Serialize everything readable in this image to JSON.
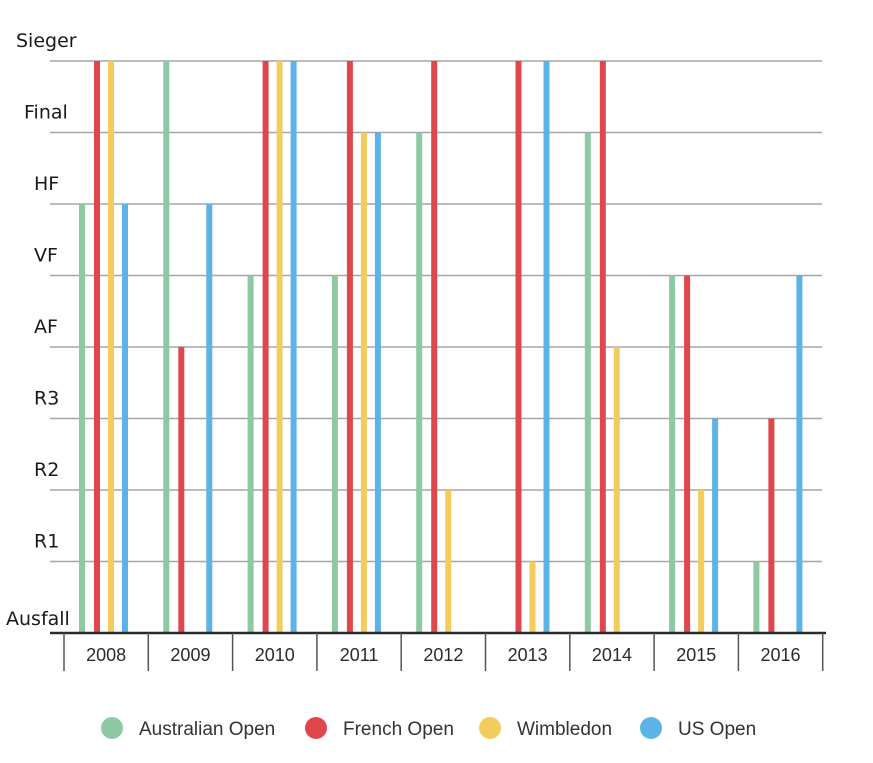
{
  "chart_data": {
    "type": "bar",
    "categories": [
      "2008",
      "2009",
      "2010",
      "2011",
      "2012",
      "2013",
      "2014",
      "2015",
      "2016"
    ],
    "y_levels": [
      "Ausfall",
      "R1",
      "R2",
      "R3",
      "AF",
      "VF",
      "HF",
      "Final",
      "Sieger"
    ],
    "ylim": [
      0,
      8
    ],
    "grid": true,
    "legend_position": "bottom",
    "series": [
      {
        "name": "Australian Open",
        "color": "#8ec9a4",
        "values": [
          "HF",
          "Sieger",
          "VF",
          "VF",
          "Final",
          "Ausfall",
          "Final",
          "VF",
          "R1"
        ]
      },
      {
        "name": "French Open",
        "color": "#e0474c",
        "values": [
          "Sieger",
          "AF",
          "Sieger",
          "Sieger",
          "Sieger",
          "Sieger",
          "Sieger",
          "VF",
          "R3"
        ]
      },
      {
        "name": "Wimbledon",
        "color": "#f2cd5d",
        "values": [
          "Sieger",
          "Ausfall",
          "Sieger",
          "Final",
          "R2",
          "R1",
          "AF",
          "R2",
          "Ausfall"
        ]
      },
      {
        "name": "US Open",
        "color": "#5bb4e5",
        "values": [
          "HF",
          "HF",
          "Sieger",
          "Final",
          "Ausfall",
          "Sieger",
          "Ausfall",
          "R3",
          "VF"
        ]
      }
    ]
  }
}
